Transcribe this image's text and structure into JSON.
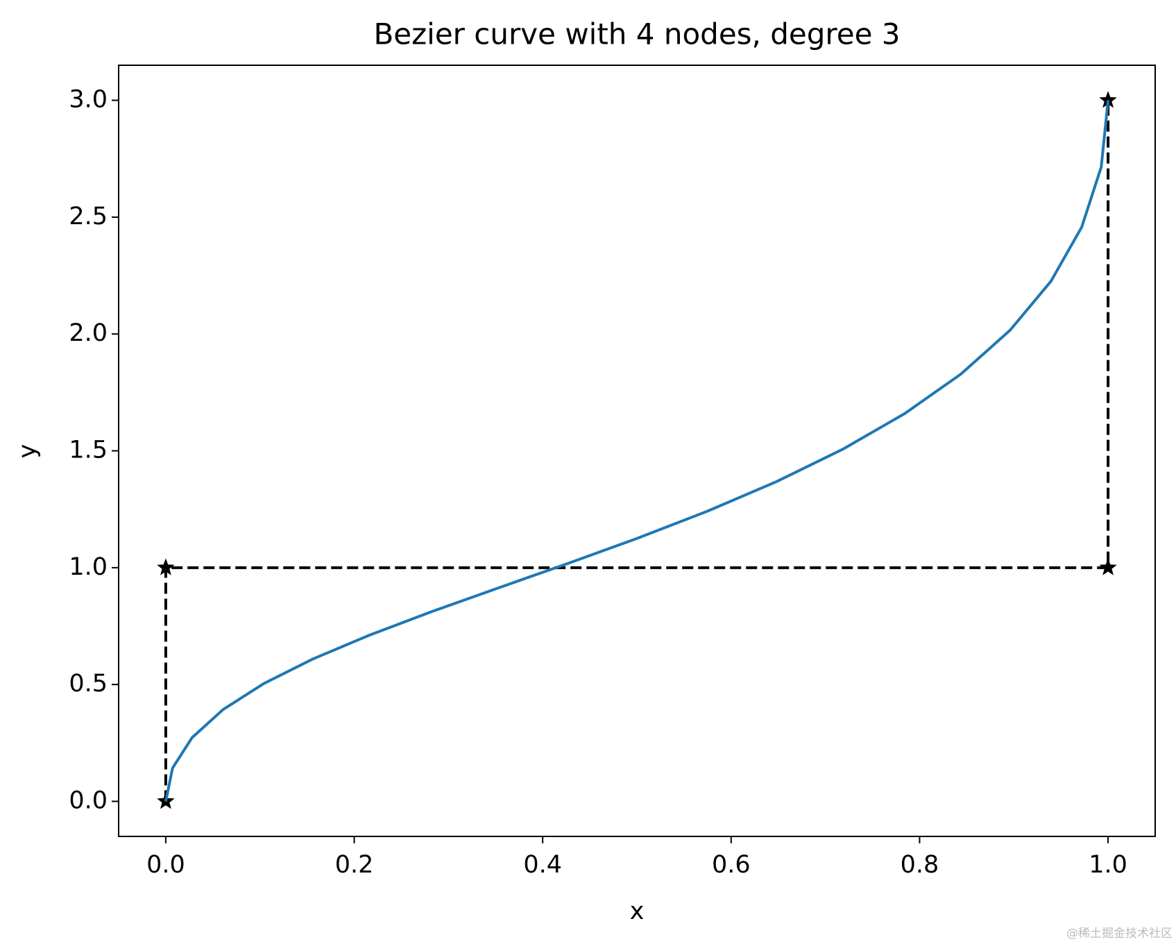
{
  "chart_data": {
    "type": "line",
    "title": "Bezier curve with 4 nodes, degree 3",
    "x_label": "x",
    "y_label": "y",
    "xlim": [
      -0.05,
      1.05
    ],
    "ylim": [
      -0.15,
      3.15
    ],
    "xticks": [
      {
        "value": 0,
        "label": "0.0"
      },
      {
        "value": 0.2,
        "label": "0.2"
      },
      {
        "value": 0.4,
        "label": "0.4"
      },
      {
        "value": 0.6,
        "label": "0.6"
      },
      {
        "value": 0.8,
        "label": "0.8"
      },
      {
        "value": 1,
        "label": "1.0"
      }
    ],
    "yticks": [
      {
        "value": 0,
        "label": "0.0"
      },
      {
        "value": 0.5,
        "label": "0.5"
      },
      {
        "value": 1,
        "label": "1.0"
      },
      {
        "value": 1.5,
        "label": "1.5"
      },
      {
        "value": 2,
        "label": "2.0"
      },
      {
        "value": 2.5,
        "label": "2.5"
      },
      {
        "value": 3,
        "label": "3.0"
      }
    ],
    "grid": false,
    "series": [
      {
        "color": "#000000",
        "dashed": true,
        "marker": "star",
        "x": [
          0,
          0,
          1,
          1
        ],
        "values": [
          0,
          1,
          1,
          3
        ]
      },
      {
        "color": "#1f77b4",
        "dashed": false,
        "x": [
          0,
          0.00725,
          0.028,
          0.06075,
          0.104,
          0.15625,
          0.216,
          0.28175,
          0.352,
          0.42525,
          0.5,
          0.57475,
          0.648,
          0.71825,
          0.784,
          0.84375,
          0.896,
          0.93925,
          0.972,
          0.99275,
          1
        ],
        "values": [
          0,
          0.142875,
          0.273,
          0.392625,
          0.504,
          0.609375,
          0.711,
          0.811125,
          0.912,
          1.015875,
          1.125,
          1.241625,
          1.368,
          1.506375,
          1.659,
          1.828125,
          2.016,
          2.224875,
          2.457,
          2.714625,
          3
        ]
      }
    ],
    "watermark": "@稀土掘金技术社区"
  }
}
